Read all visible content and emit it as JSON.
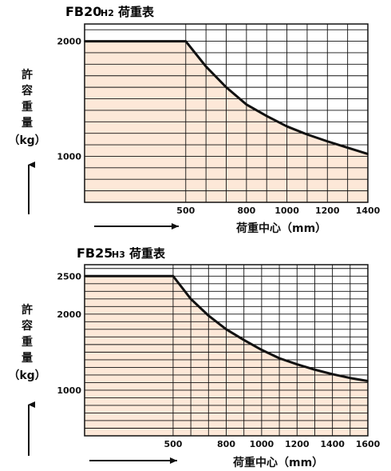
{
  "chart_data": [
    {
      "type": "line",
      "title_model": "FB20",
      "title_suffix": "H2",
      "title_label": "荷重表",
      "ylabel": [
        "許",
        "容",
        "重",
        "量",
        "（kg）"
      ],
      "xlabel": "荷重中心（mm）",
      "y_ticks": [
        1000,
        2000
      ],
      "x_ticks": [
        500,
        800,
        1000,
        1200,
        1400
      ],
      "xlim": [
        0,
        1400
      ],
      "ylim": [
        600,
        2150
      ],
      "grid": true,
      "series": [
        {
          "points": [
            [
              0,
              2000
            ],
            [
              500,
              2000
            ],
            [
              600,
              1780
            ],
            [
              700,
              1600
            ],
            [
              800,
              1450
            ],
            [
              900,
              1350
            ],
            [
              1000,
              1260
            ],
            [
              1100,
              1190
            ],
            [
              1200,
              1130
            ],
            [
              1300,
              1075
            ],
            [
              1400,
              1020
            ]
          ]
        }
      ]
    },
    {
      "type": "line",
      "title_model": "FB25",
      "title_suffix": "H3",
      "title_label": "荷重表",
      "ylabel": [
        "許",
        "容",
        "重",
        "量",
        "（kg）"
      ],
      "xlabel": "荷重中心（mm）",
      "y_ticks": [
        1000,
        2000,
        2500
      ],
      "x_ticks": [
        500,
        800,
        1000,
        1200,
        1400,
        1600
      ],
      "xlim": [
        0,
        1600
      ],
      "ylim": [
        400,
        2650
      ],
      "grid": true,
      "series": [
        {
          "points": [
            [
              0,
              2500
            ],
            [
              500,
              2500
            ],
            [
              600,
              2200
            ],
            [
              700,
              1980
            ],
            [
              800,
              1800
            ],
            [
              900,
              1660
            ],
            [
              1000,
              1530
            ],
            [
              1100,
              1420
            ],
            [
              1200,
              1340
            ],
            [
              1300,
              1270
            ],
            [
              1400,
              1210
            ],
            [
              1500,
              1160
            ],
            [
              1600,
              1120
            ]
          ]
        }
      ]
    }
  ],
  "colors": {
    "fill": "#fde8d8",
    "grid": "#111111",
    "line": "#111111"
  }
}
